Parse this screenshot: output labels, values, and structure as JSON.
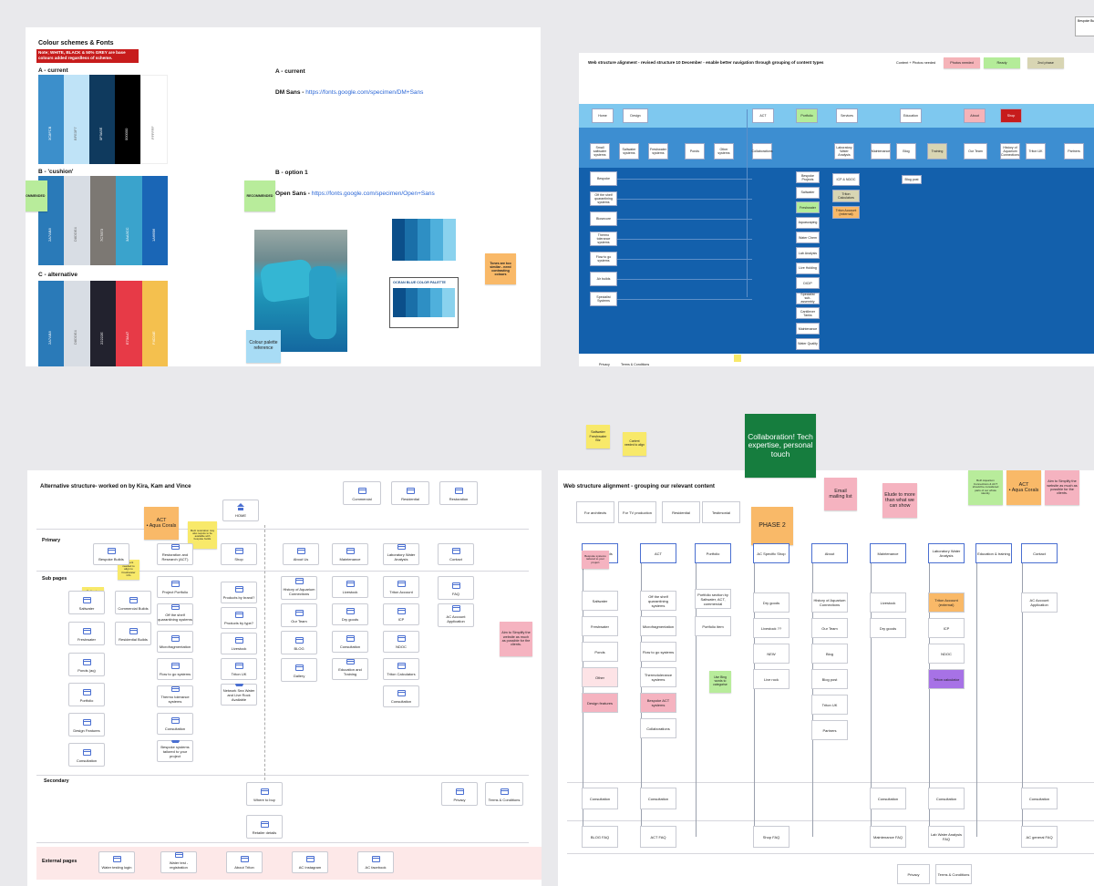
{
  "colour_frame": {
    "title": "Colour schemes & Fonts",
    "note": "Note; WHITE, BLACK & 50% GREY are base colours added regardless of scheme.",
    "scheme_a_label": "A - current",
    "scheme_b_label": "B - 'cushion'",
    "scheme_c_label": "C - alternative",
    "scheme_a_colors": [
      "#3c8fcb",
      "#bfe3f7",
      "#0f3a5e",
      "#000000",
      "#ffffff"
    ],
    "scheme_b_colors": [
      "#2a7ab8",
      "#d8dde4",
      "#7c7873",
      "#3aa3cc",
      "#1a66b6"
    ],
    "scheme_c_colors": [
      "#2a7ab8",
      "#d8dde4",
      "#22222e",
      "#e73a47",
      "#f4c04e"
    ],
    "font_a_heading": "A - current",
    "font_a_name": "DM Sans - ",
    "font_a_link": "https://fonts.google.com/specimen/DM+Sans",
    "font_b_heading": "B - option 1",
    "font_b_name": "Open Sans - ",
    "font_b_link": "https://fonts.google.com/specimen/Open+Sans",
    "recommended": "RECOMMENDED",
    "recommended_2": "RECOMMENDED",
    "palette_sticky": "Colour palette reference",
    "tones_sticky": "Tones are too similar - need contrasting colours",
    "palette_card_title": "OCEAN BLUE COLOR PALETTE",
    "ocean_colors": [
      "#0b4f8a",
      "#1a6fa8",
      "#2e8fc4",
      "#4fb0dc",
      "#8ad2ee"
    ]
  },
  "web_frame_1": {
    "title": "Web structure alignment - revised structure 10 December - enable better navigation through grouping of content types",
    "legend": {
      "content_photos": "Content + Photos needed",
      "photos_needed": "Photos needed",
      "ready": "Ready",
      "phase2": "2nd phase"
    },
    "nav": [
      "Home",
      "Design",
      "ACT",
      "Portfolio",
      "Services",
      "Education",
      "About",
      "Shop"
    ],
    "sub": [
      "Small saltwater systems",
      "Saltwater systems",
      "Freshwater systems",
      "Ponds",
      "Other systems",
      "Collaborations",
      "Laboratory Water Analysis",
      "Maintenance",
      "Blog",
      "Training",
      "Our Team",
      "History of Aquarium Connections",
      "Triton UK",
      "Partners"
    ],
    "design_list": [
      "Bespoke",
      "Off the shelf quarantining systems",
      "Biosecure",
      "Thermo tolerance systems",
      "Flow to go systems",
      "Air builds",
      "Specialist Systems"
    ],
    "portfolio_list": [
      "Bespoke Projects",
      "Saltwater",
      "Freshwater",
      "Aquascaping",
      "Water Chem",
      "Lab Analysis",
      "Live Holding",
      "DICIP",
      "Specialist sub-assembly",
      "Cantilever Tanks",
      "Maintenance",
      "Water Quality"
    ],
    "services_list": [
      "ICP & NDOC",
      "Triton Calculators",
      "Triton Account (external)"
    ],
    "blog_list": [
      "Blog post"
    ],
    "footer": [
      "Privacy",
      "Terms & Conditions"
    ],
    "corner_text": "Bespoke Builds"
  },
  "alt_frame": {
    "title": "Alternative structure- worked on by Kira, Kam and Vince",
    "top_cards": [
      "Commercial",
      "Residential",
      "Restoration"
    ],
    "home": "HOME",
    "primary_label": "Primary",
    "subpages_label": "Sub pages",
    "secondary_label": "Secondary",
    "external_label": "External pages",
    "primary": [
      "Bespoke Builds",
      "Restoration and Research (ACT)",
      "Shop",
      "About Us",
      "Maintenance",
      "Laboratory Water Analysis",
      "Contact"
    ],
    "bespoke_sub": [
      "Saltwater",
      "Commercial Builds",
      "Freshwater",
      "Residential Builds",
      "Ponds (aq)",
      "Portfolio",
      "Design Features",
      "Consultation"
    ],
    "act_sub": [
      "Project Portfolio",
      "Off the shelf quarantining systems",
      "Microfragmentation",
      "Flow to go systems",
      "Thermo tolerance systems",
      "Consultation",
      "Bespoke systems tailored to your project"
    ],
    "shop_sub": [
      "Products by brand?",
      "Products by type?",
      "Livestock",
      "Triton UK",
      "Network Sea Water and Live Rock Available"
    ],
    "about_sub": [
      "History of Aquarium Connections",
      "Our Team",
      "BLOG",
      "Gallery"
    ],
    "maint_sub": [
      "Livestock",
      "Dry goods",
      "Consultation",
      "Education and Training"
    ],
    "lab_sub": [
      "Triton Account",
      "ICP",
      "NDOC",
      "Triton Calculators",
      "Consultation"
    ],
    "contact_sub": [
      "FAQ",
      "AC Account Application"
    ],
    "secondary": [
      "Where to buy",
      "Retailer details",
      "Privacy",
      "Terms & Conditions"
    ],
    "external": [
      "Water testing login",
      "Water test - registration",
      "About Triton",
      "AC Instagram",
      "AC facebook"
    ],
    "sticky_act": "ACT\n• Aqua Corals",
    "sticky_saltfresh": "Saltwater Freshwater Biz",
    "sticky_small1": "Saltwater Freshwater Biz",
    "sticky_small2": "Content needed to align to Freshwater info",
    "sticky_green": "Merit restoration may also require to be available with bespoke builds",
    "sticky_simplify": "Aim to Simplify the website as much as possible for the clients."
  },
  "web_frame_2": {
    "title": "Web structure alignment - grouping our relevant content",
    "audience": [
      "For architects",
      "For TV production",
      "Residential",
      "Testimonial"
    ],
    "phase2": "PHASE 2",
    "collab": "Collaboration! Tech expertise, personal touch",
    "email": "Email mailing list",
    "elude": "Elude to more than what we can show",
    "sticky_act": "ACT\n• Aqua Corals",
    "sticky_simplify": "Aim to Simplify the website as much as possible for the clients.",
    "sticky_top1": "Saltwater Freshwater Biz",
    "sticky_top2": "Content needed to align",
    "green_note": "Both Aquarium Connections & ACT should be considered parts of our whole identity",
    "columns": [
      "Bespoke Builds",
      "ACT",
      "Portfolio",
      "AC Specific Shop",
      "About",
      "Maintenance",
      "Laboratory Water Analysis",
      "Education & training",
      "Contact"
    ],
    "col1": [
      "Saltwater",
      "Freshwater",
      "Ponds",
      "Other",
      "Design features"
    ],
    "col2": [
      "Off the shelf quarantining systems",
      "Microfragmentation",
      "Flow to go systems",
      "Thermotolerance systems",
      "Bespoke ACT systems",
      "Collaborations"
    ],
    "col3": [
      "Portfolio section by Saltwater, ACT, commercial",
      "Portfolio item"
    ],
    "col4": [
      "Dry goods",
      "Livestock ??",
      "NEW",
      "Live rock"
    ],
    "col5": [
      "History of Aquarium Connections",
      "Our Team",
      "Blog",
      "Blog post",
      "Triton UK",
      "Partners"
    ],
    "col6": [
      "Livestock",
      "Dry goods"
    ],
    "col7": [
      "Triton Account (external)",
      "ICP",
      "NDOC",
      "Triton calculator"
    ],
    "col9": [
      "AC Account Application"
    ],
    "bottom1": [
      "Consultation",
      "Consultation",
      "Consultation",
      "Consultation",
      "Consultation"
    ],
    "bottom2": [
      "BLOG FAQ",
      "ACT FAQ",
      "Shop FAQ",
      "Maintenance FAQ",
      "Lab Water Analysis FAQ",
      "AC general FAQ"
    ],
    "footer": [
      "Privacy",
      "Terms & Conditions"
    ],
    "sticky_bespoke_note": "Bespoke systems tailored to your project",
    "sticky_green_mid": "Use Bing words to categorise"
  }
}
